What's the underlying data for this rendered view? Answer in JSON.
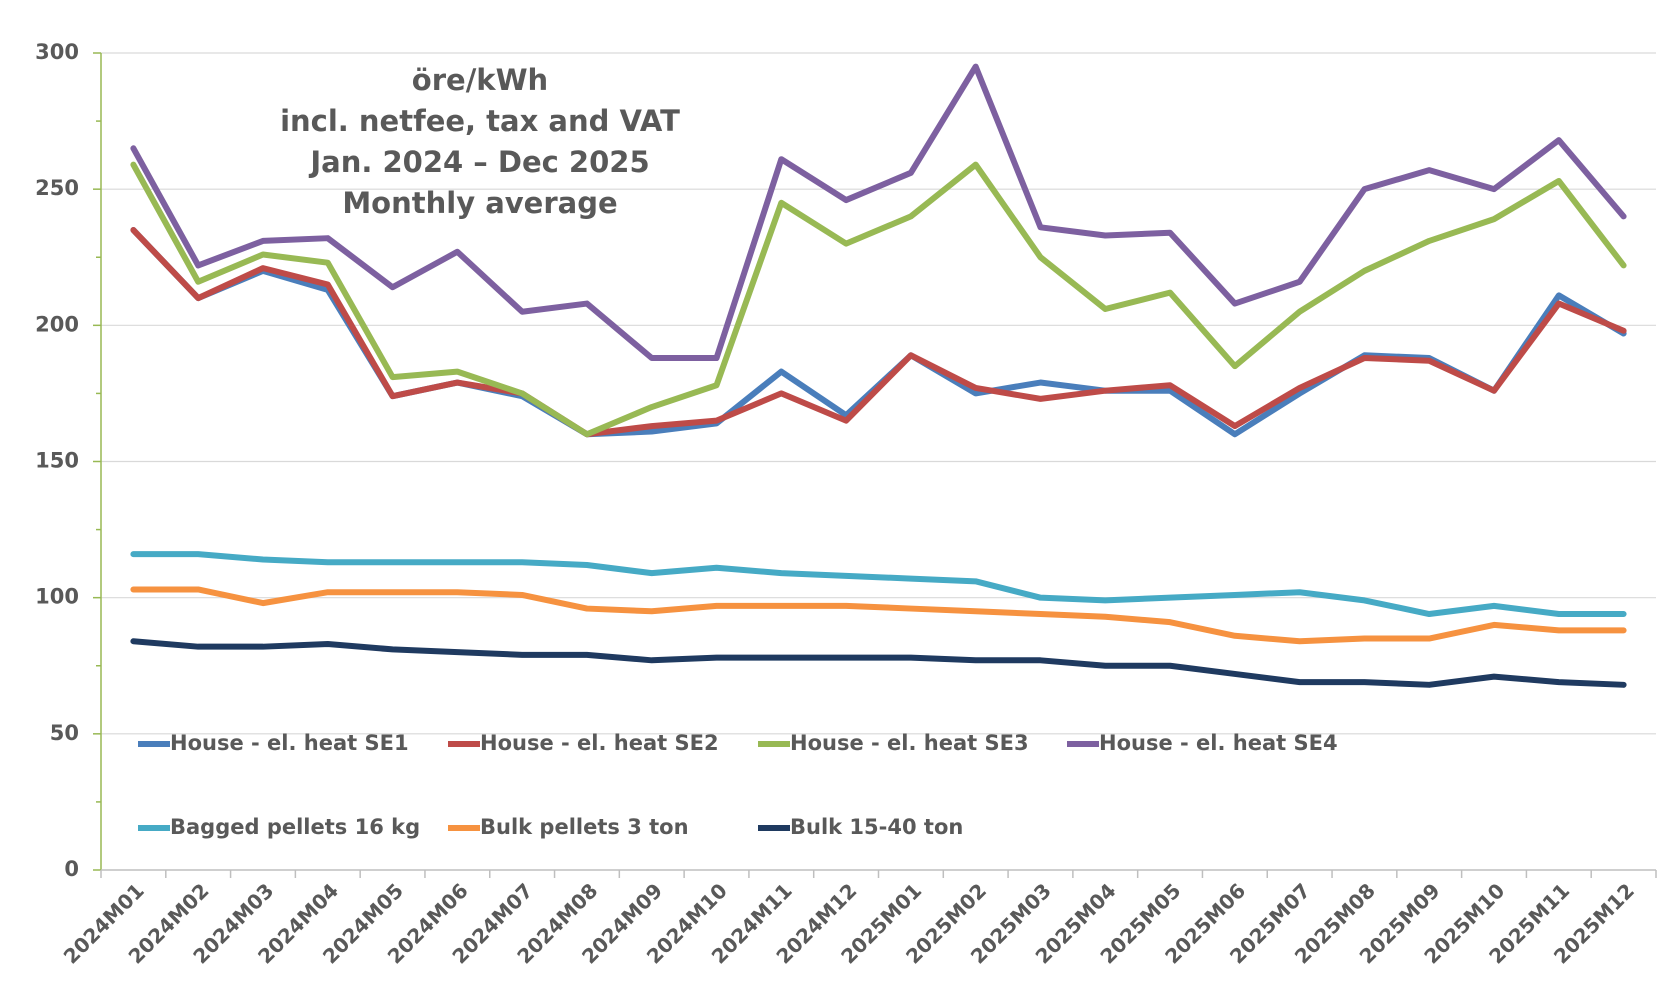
{
  "chart_data": {
    "type": "line",
    "title_lines": [
      "öre/kWh",
      "incl. netfee, tax and VAT",
      "Jan. 2024 – Dec 2025",
      "Monthly average"
    ],
    "categories": [
      "2024M01",
      "2024M02",
      "2024M03",
      "2024M04",
      "2024M05",
      "2024M06",
      "2024M07",
      "2024M08",
      "2024M09",
      "2024M10",
      "2024M11",
      "2024M12",
      "2025M01",
      "2025M02",
      "2025M03",
      "2025M04",
      "2025M05",
      "2025M06",
      "2025M07",
      "2025M08",
      "2025M09",
      "2025M10",
      "2025M11",
      "2025M12"
    ],
    "series": [
      {
        "name": "House - el. heat SE1",
        "color": "#4a7ebb",
        "values": [
          235,
          210,
          220,
          213,
          174,
          179,
          174,
          160,
          161,
          164,
          183,
          167,
          189,
          175,
          179,
          176,
          176,
          160,
          175,
          189,
          188,
          176,
          211,
          197
        ]
      },
      {
        "name": "House - el. heat SE2",
        "color": "#be4b48",
        "values": [
          235,
          210,
          221,
          215,
          174,
          179,
          175,
          160,
          163,
          165,
          175,
          165,
          189,
          177,
          173,
          176,
          178,
          163,
          177,
          188,
          187,
          176,
          208,
          198
        ]
      },
      {
        "name": "House - el. heat SE3",
        "color": "#98b954",
        "values": [
          259,
          216,
          226,
          223,
          181,
          183,
          175,
          160,
          170,
          178,
          245,
          230,
          240,
          259,
          225,
          206,
          212,
          185,
          205,
          220,
          231,
          239,
          253,
          222
        ]
      },
      {
        "name": "House - el. heat SE4",
        "color": "#7d60a0",
        "values": [
          265,
          222,
          231,
          232,
          214,
          227,
          205,
          208,
          188,
          188,
          261,
          246,
          256,
          295,
          236,
          233,
          234,
          208,
          216,
          250,
          257,
          250,
          268,
          240
        ]
      },
      {
        "name": "Bagged pellets 16 kg",
        "color": "#46aac5",
        "values": [
          116,
          116,
          114,
          113,
          113,
          113,
          113,
          112,
          109,
          111,
          109,
          108,
          107,
          106,
          100,
          99,
          100,
          101,
          102,
          99,
          94,
          97,
          94,
          94
        ]
      },
      {
        "name": "Bulk pellets 3 ton",
        "color": "#f69240",
        "values": [
          103,
          103,
          98,
          102,
          102,
          102,
          101,
          96,
          95,
          97,
          97,
          97,
          96,
          95,
          94,
          93,
          91,
          86,
          84,
          85,
          85,
          90,
          88,
          88
        ]
      },
      {
        "name": "Bulk 15-40 ton",
        "color": "#1f3a60",
        "values": [
          84,
          82,
          82,
          83,
          81,
          80,
          79,
          79,
          77,
          78,
          78,
          78,
          78,
          77,
          77,
          75,
          75,
          72,
          69,
          69,
          68,
          71,
          69,
          68
        ]
      }
    ],
    "ylim": [
      0,
      300
    ],
    "yticks": [
      0,
      50,
      100,
      150,
      200,
      250,
      300
    ],
    "grid": true,
    "legend": "lower left"
  }
}
